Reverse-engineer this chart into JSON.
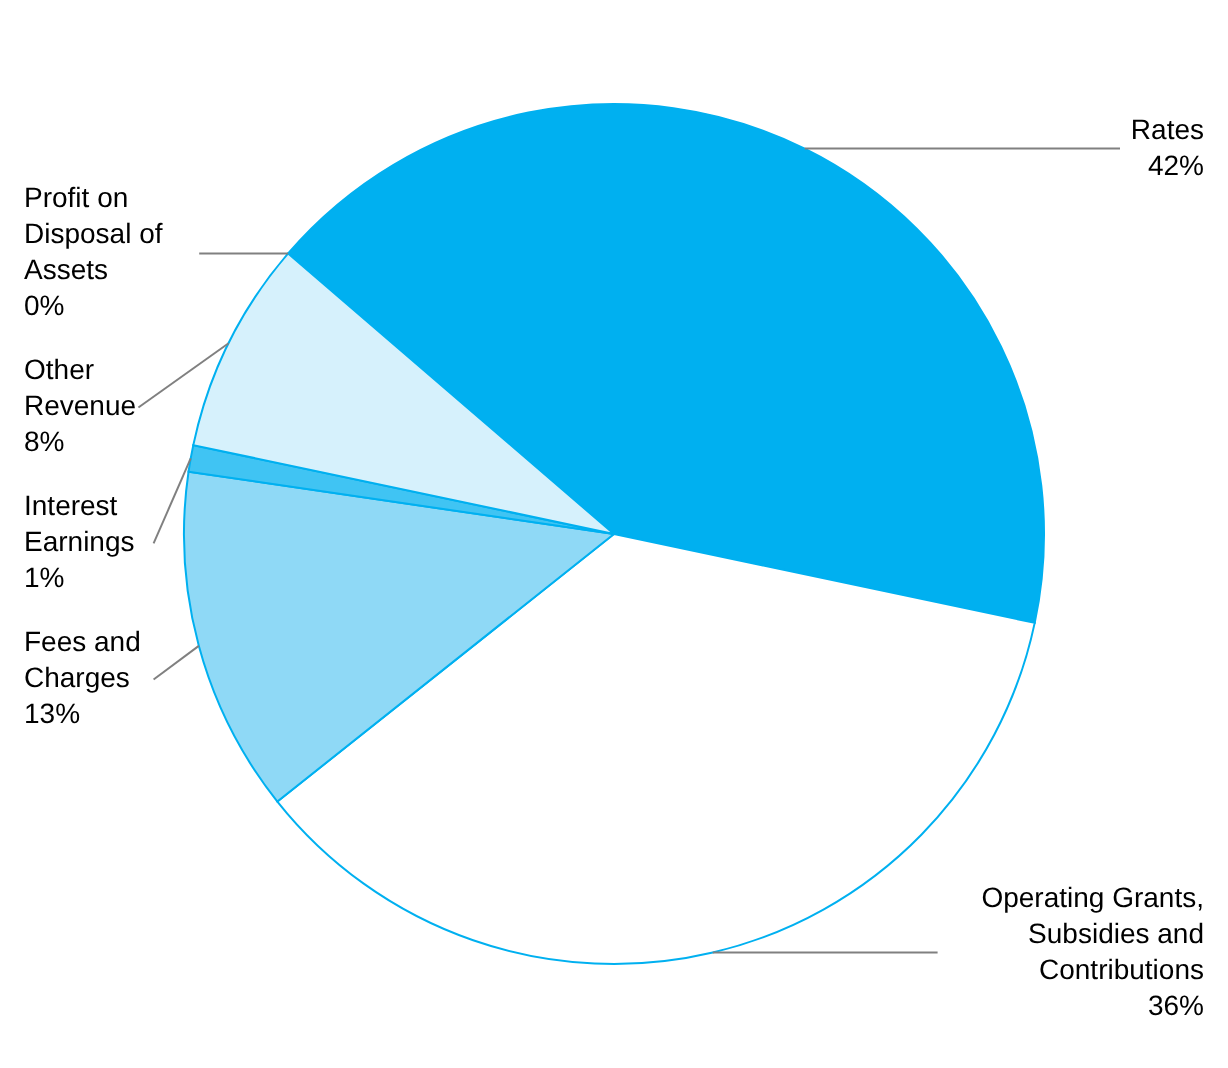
{
  "chart_data": {
    "type": "pie",
    "categories": [
      "Rates",
      "Operating Grants, Subsidies and Contributions",
      "Fees and Charges",
      "Interest Earnings",
      "Other Revenue",
      "Profit on Disposal of Assets"
    ],
    "values": [
      42,
      36,
      13,
      1,
      8,
      0
    ],
    "value_labels": [
      "42%",
      "36%",
      "13%",
      "1%",
      "8%",
      "0%"
    ],
    "colors": [
      "#00b0f0",
      "#ffffff",
      "#8fd9f6",
      "#40c4f3",
      "#d6f1fc",
      "#00b0f0"
    ]
  }
}
